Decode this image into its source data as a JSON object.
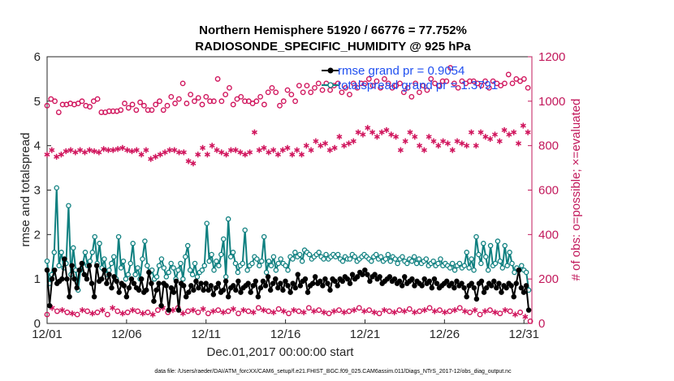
{
  "chart_data": {
    "type": "line",
    "title_line1": "Northern Hemisphere 51920 / 66776 = 77.752%",
    "title_line2": "RADIOSONDE_SPECIFIC_HUMIDITY @ 925 hPa",
    "xlabel": "Dec.01,2017 00:00:00 start",
    "ylabel_left": "rmse and totalspread",
    "ylabel_right": "# of obs: o=possible; ×=evaluated",
    "footer": "data file: /Users/raeder/DAI/ATM_forcXX/CAM6_setup/f.e21.FHIST_BGC.f09_025.CAM6assim.011/Diags_NTrS_2017-12/obs_diag_output.nc",
    "x_tick_labels": [
      "12/01",
      "12/06",
      "12/11",
      "12/16",
      "12/21",
      "12/26",
      "12/31"
    ],
    "x_tick_days": [
      0,
      5,
      10,
      15,
      20,
      25,
      30
    ],
    "xlim": [
      0,
      30.5
    ],
    "ylim_left": [
      0,
      6
    ],
    "ylim_right": [
      0,
      1200
    ],
    "y_left_ticks": [
      "0",
      "1",
      "2",
      "3",
      "4",
      "5",
      "6"
    ],
    "y_right_ticks": [
      "0",
      "200",
      "400",
      "600",
      "800",
      "1000",
      "1200"
    ],
    "legend": [
      "rmse grand pr = 0.9054",
      "totalspread grand pr = 1.3791"
    ],
    "series_colors": {
      "rmse": "#000000",
      "totalspread": "#0f8080",
      "obs": "#d0145c"
    },
    "rmse": [
      1.2,
      0.4,
      1.0,
      1.2,
      0.9,
      0.95,
      1.0,
      1.45,
      1.0,
      0.6,
      1.3,
      1.0,
      0.8,
      1.2,
      1.35,
      1.1,
      1.0,
      1.3,
      0.9,
      0.6,
      1.3,
      0.95,
      1.0,
      1.2,
      0.9,
      1.1,
      0.8,
      1.05,
      0.95,
      0.7,
      0.9,
      0.85,
      0.6,
      0.8,
      1.0,
      0.9,
      0.8,
      0.75,
      1.0,
      0.7,
      0.75,
      1.15,
      0.9,
      0.5,
      0.75,
      0.9,
      0.4,
      0.9,
      0.85,
      0.3,
      0.8,
      0.7,
      0.95,
      0.3,
      0.9,
      0.85,
      0.6,
      0.7,
      0.85,
      0.75,
      0.95,
      0.8,
      0.9,
      0.75,
      0.9,
      0.75,
      0.85,
      0.65,
      0.8,
      0.9,
      0.7,
      0.75,
      0.95,
      0.6,
      0.8,
      0.85,
      0.75,
      0.95,
      0.7,
      0.8,
      0.85,
      0.9,
      0.7,
      0.85,
      0.95,
      0.6,
      0.8,
      0.95,
      0.85,
      1.05,
      0.75,
      0.9,
      1.0,
      0.8,
      0.9,
      0.75,
      0.95,
      0.85,
      0.7,
      0.9,
      0.8,
      1.1,
      0.85,
      0.95,
      1.0,
      0.7,
      0.85,
      0.9,
      1.05,
      0.9,
      0.95,
      0.85,
      1.0,
      0.9,
      0.75,
      1.0,
      0.95,
      0.85,
      1.0,
      0.95,
      1.05,
      1.0,
      0.9,
      1.1,
      1.0,
      1.05,
      1.15,
      1.1,
      1.2,
      1.1,
      0.95,
      1.05,
      1.1,
      1.0,
      1.05,
      0.9,
      0.95,
      1.0,
      1.05,
      0.95,
      1.0,
      0.9,
      0.95,
      0.85,
      1.05,
      0.9,
      0.95,
      1.0,
      0.85,
      0.95,
      0.9,
      0.85,
      1.0,
      0.9,
      0.95,
      0.8,
      1.0,
      0.9,
      0.8,
      0.85,
      0.9,
      0.95,
      0.85,
      0.9,
      0.8,
      0.95,
      0.85,
      0.9,
      0.8,
      0.6,
      0.85,
      0.9,
      0.8,
      0.55,
      0.9,
      0.95,
      0.7,
      0.8,
      0.9,
      0.85,
      0.95,
      0.8,
      0.9,
      0.7,
      0.85,
      0.8,
      0.9,
      0.85,
      0.6,
      0.9,
      1.2,
      0.8,
      0.7,
      0.85,
      0.3
    ],
    "totalspread": [
      1.4,
      0.9,
      1.1,
      1.6,
      3.05,
      1.3,
      1.6,
      1.25,
      1.35,
      2.65,
      1.1,
      1.7,
      1.2,
      0.75,
      1.2,
      1.35,
      1.6,
      1.3,
      1.4,
      1.6,
      1.95,
      1.35,
      1.8,
      1.25,
      1.45,
      1.1,
      1.2,
      1.35,
      1.5,
      1.0,
      1.95,
      1.25,
      1.4,
      1.0,
      1.1,
      1.35,
      1.8,
      1.1,
      1.25,
      1.0,
      1.45,
      1.85,
      1.3,
      1.15,
      1.2,
      1.0,
      1.05,
      1.3,
      1.45,
      1.25,
      1.05,
      1.15,
      1.35,
      1.25,
      1.0,
      1.2,
      1.35,
      1.0,
      1.5,
      1.75,
      1.2,
      1.1,
      1.35,
      1.05,
      1.15,
      1.2,
      1.3,
      2.25,
      1.4,
      1.55,
      1.2,
      1.4,
      1.3,
      1.55,
      1.9,
      1.05,
      2.35,
      1.5,
      1.6,
      1.35,
      1.15,
      1.3,
      1.35,
      2.1,
      1.2,
      1.3,
      1.35,
      1.5,
      1.45,
      1.3,
      1.4,
      1.95,
      1.15,
      1.4,
      1.3,
      1.5,
      1.2,
      1.35,
      1.45,
      1.35,
      1.3,
      1.2,
      1.5,
      1.45,
      1.6,
      1.5,
      1.55,
      1.4,
      1.65,
      1.6,
      1.55,
      1.45,
      1.5,
      1.55,
      1.6,
      1.5,
      1.45,
      1.55,
      1.45,
      1.5,
      1.55,
      1.5,
      1.55,
      1.45,
      1.4,
      1.5,
      1.45,
      1.45,
      1.55,
      1.5,
      1.4,
      1.45,
      1.5,
      1.55,
      1.5,
      1.45,
      1.4,
      1.5,
      1.55,
      1.45,
      1.5,
      1.4,
      1.45,
      1.55,
      1.4,
      1.5,
      1.45,
      1.35,
      1.45,
      1.5,
      1.4,
      1.35,
      1.45,
      1.4,
      1.5,
      1.35,
      1.45,
      1.35,
      1.4,
      1.45,
      1.3,
      1.35,
      1.4,
      1.3,
      1.35,
      1.45,
      1.3,
      1.35,
      1.3,
      1.25,
      1.35,
      1.2,
      1.3,
      1.35,
      1.25,
      1.3,
      1.6,
      1.25,
      1.45,
      1.2,
      1.95,
      1.55,
      1.35,
      1.8,
      1.5,
      1.2,
      1.75,
      1.3,
      1.35,
      1.85,
      1.4,
      1.25,
      1.75,
      1.3,
      1.6,
      1.35,
      1.15,
      1.25,
      1.2,
      1.3,
      1.2,
      1.15,
      0.75
    ],
    "obs_possible_ticks": [
      980,
      1010,
      1000,
      950,
      985,
      985,
      990,
      985,
      990,
      1000,
      980,
      975,
      1000,
      1010,
      950,
      950,
      955,
      955,
      955,
      960,
      990,
      970,
      985,
      960,
      995,
      980,
      960,
      960,
      985,
      1000,
      960,
      980,
      1020,
      990,
      1010,
      1080,
      990,
      1030,
      1000,
      1015,
      985,
      1020,
      1000,
      1000,
      1100,
      1000,
      1030,
      1060,
      985,
      1010,
      1020,
      1000,
      1000,
      990,
      1000,
      1020,
      985,
      1040,
      1060,
      1040,
      980,
      1000,
      1050,
      1030,
      1000,
      1070,
      1040,
      1070,
      1040,
      1060,
      1080,
      1050,
      1080,
      1050,
      1070,
      1080,
      1040,
      1060,
      1030,
      1080,
      1060,
      1080,
      1080,
      1100,
      1070,
      1090,
      1060,
      1100,
      1080,
      1060,
      1070,
      1080,
      1040,
      1060,
      1020,
      1080,
      1040,
      1070,
      1050,
      1100,
      1080,
      1070,
      1090,
      1090,
      1150,
      1080,
      1060,
      1090,
      1080,
      1090,
      1090,
      1080,
      1070,
      1090,
      1060,
      1090,
      1080,
      1070,
      1080,
      1120,
      1080,
      1100,
      1090,
      1100,
      1060
    ],
    "obs_evaluated_ticks": [
      760,
      780,
      750,
      760,
      775,
      780,
      770,
      780,
      770,
      780,
      775,
      770,
      785,
      780,
      780,
      785,
      790,
      780,
      775,
      780,
      760,
      780,
      740,
      750,
      760,
      770,
      780,
      780,
      770,
      770,
      730,
      720,
      760,
      790,
      760,
      800,
      780,
      770,
      760,
      780,
      780,
      770,
      760,
      770,
      860,
      780,
      790,
      770,
      780,
      760,
      780,
      790,
      760,
      780,
      760,
      800,
      780,
      820,
      800,
      810,
      780,
      790,
      840,
      800,
      810,
      820,
      860,
      850,
      880,
      860,
      840,
      860,
      870,
      850,
      840,
      780,
      820,
      860,
      840,
      800,
      780,
      840,
      820,
      800,
      820,
      810,
      780,
      820,
      810,
      800,
      860,
      800,
      860,
      840,
      830,
      850,
      820,
      870,
      850,
      860,
      810,
      890,
      860
    ],
    "obs_possible_low_ticks": [
      40,
      70,
      55,
      60,
      50,
      45,
      40,
      60,
      55,
      45,
      50,
      60,
      40,
      70,
      55,
      45,
      50,
      60,
      55,
      45,
      50,
      40,
      60,
      70,
      50,
      60,
      70,
      45,
      55,
      60,
      50,
      65,
      45,
      55,
      60,
      50,
      55,
      65,
      45,
      60,
      55,
      50,
      70,
      60,
      55,
      50,
      65,
      55,
      45,
      60,
      55,
      50,
      70,
      55,
      60,
      50,
      45,
      55,
      60,
      50,
      55,
      60,
      70,
      55,
      60,
      50,
      45,
      60,
      55,
      50,
      60,
      55,
      65,
      50,
      55,
      60,
      70,
      55,
      60,
      50,
      55,
      60,
      70,
      55,
      50,
      60,
      40,
      55,
      60,
      50,
      45,
      60,
      55,
      40,
      50,
      30,
      10
    ]
  }
}
